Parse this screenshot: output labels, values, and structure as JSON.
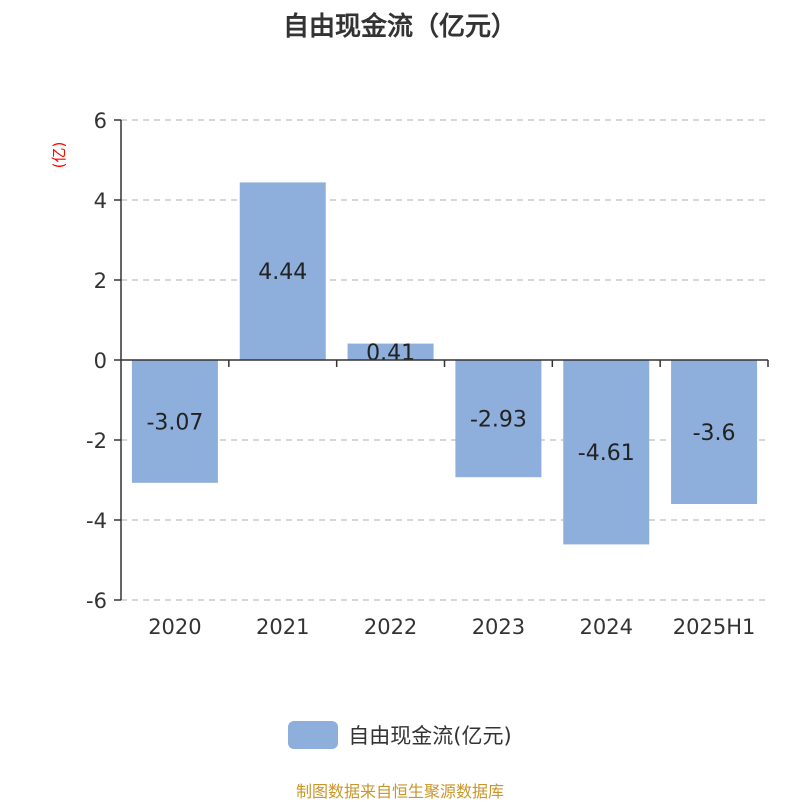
{
  "chart_data": {
    "type": "bar",
    "title": "自由现金流（亿元）",
    "ylabel": "(亿)",
    "categories": [
      "2020",
      "2021",
      "2022",
      "2023",
      "2024",
      "2025H1"
    ],
    "series": [
      {
        "name": "自由现金流(亿元)",
        "values": [
          -3.07,
          4.44,
          0.41,
          -2.93,
          -4.61,
          -3.6
        ]
      }
    ],
    "data_labels": [
      "-3.07",
      "4.44",
      "0.41",
      "-2.93",
      "-4.61",
      "-3.6"
    ],
    "ylim": [
      -6,
      6
    ],
    "yticks": [
      6,
      4,
      2,
      0,
      -2,
      -4,
      -6
    ],
    "grid": true,
    "legend": "bottom",
    "colors": {
      "bar": "#8eaedb",
      "ylabel": "#ff0000",
      "source": "#c8962a"
    }
  },
  "source": "制图数据来自恒生聚源数据库"
}
